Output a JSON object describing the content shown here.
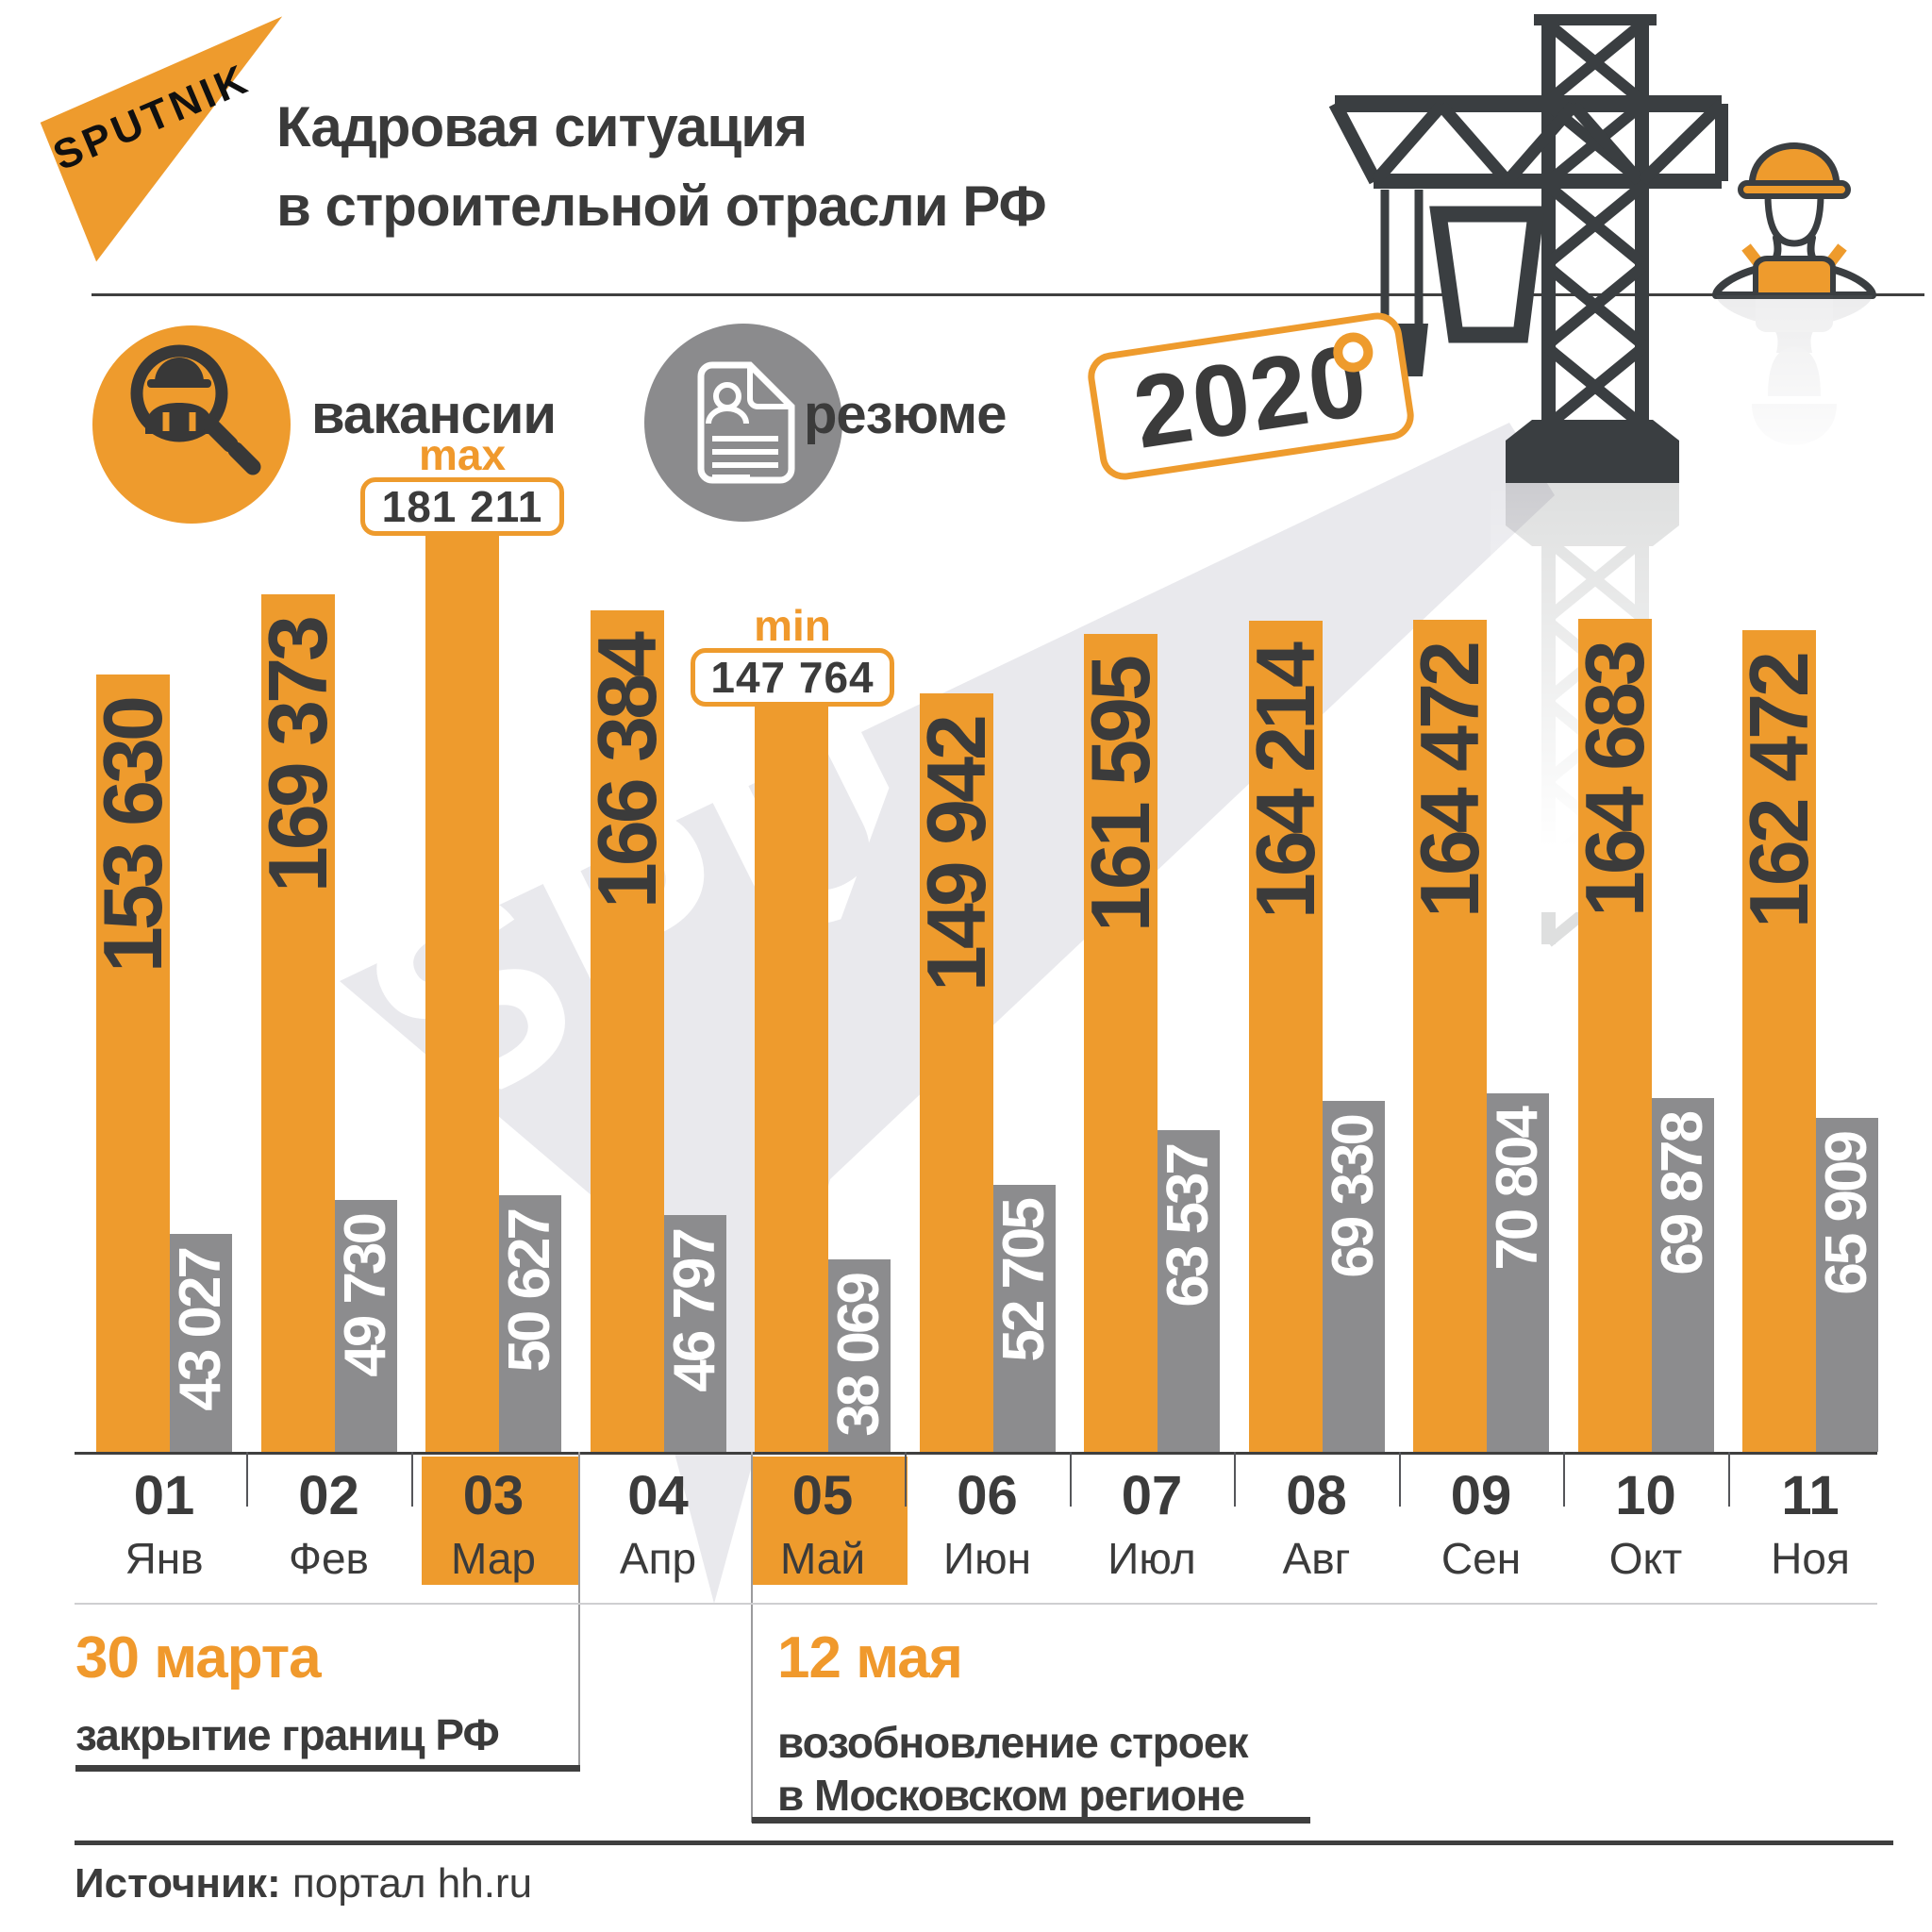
{
  "brand": {
    "logo_text": "SPUTNIK",
    "watermark_text": "SPUTNIK"
  },
  "header": {
    "title_line1": "Кадровая ситуация",
    "title_line2": "в строительной отрасли РФ"
  },
  "legend": {
    "vacancies_label": "вакансии",
    "resumes_label": "резюме",
    "vacancies_icon": "magnifier-worker-icon",
    "resumes_icon": "resume-document-icon"
  },
  "year_tag": {
    "text": "2020"
  },
  "annotations": {
    "max_label": "max",
    "max_value": "181 211",
    "min_label": "min",
    "min_value": "147 764",
    "event1_date": "30 марта",
    "event1_text": "закрытие границ РФ",
    "event2_date": "12 мая",
    "event2_text_line1": "возобновление строек",
    "event2_text_line2": "в Московском регионе"
  },
  "source": {
    "label": "Источник:",
    "text": " портал hh.ru"
  },
  "colors": {
    "orange": "#EE9B2D",
    "gray": "#8C8C8E",
    "dark": "#3B3B3B",
    "crane_dark": "#3A3E41",
    "watermark": "#E9E9ED",
    "white": "#FFFFFF"
  },
  "chart_data": {
    "type": "bar",
    "title": "Кадровая ситуация в строительной отрасли РФ, 2020",
    "categories": [
      {
        "num": "01",
        "name": "Янв"
      },
      {
        "num": "02",
        "name": "Фев"
      },
      {
        "num": "03",
        "name": "Мар"
      },
      {
        "num": "04",
        "name": "Апр"
      },
      {
        "num": "05",
        "name": "Май"
      },
      {
        "num": "06",
        "name": "Июн"
      },
      {
        "num": "07",
        "name": "Июл"
      },
      {
        "num": "08",
        "name": "Авг"
      },
      {
        "num": "09",
        "name": "Сен"
      },
      {
        "num": "10",
        "name": "Окт"
      },
      {
        "num": "11",
        "name": "Ноя"
      }
    ],
    "series": [
      {
        "name": "вакансии",
        "color": "#EE9B2D",
        "values": [
          153630,
          169373,
          181211,
          166384,
          147764,
          149942,
          161595,
          164214,
          164472,
          164683,
          162472
        ],
        "value_labels": [
          "153 630",
          "169 373",
          "181 211",
          "166 384",
          "147 764",
          "149 942",
          "161 595",
          "164 214",
          "164 472",
          "164 683",
          "162 472"
        ]
      },
      {
        "name": "резюме",
        "color": "#8C8C8E",
        "values": [
          43027,
          49730,
          50627,
          46797,
          38069,
          52705,
          63537,
          69330,
          70804,
          69878,
          65909
        ],
        "value_labels": [
          "43 027",
          "49 730",
          "50 627",
          "46 797",
          "38 069",
          "52 705",
          "63 537",
          "69 330",
          "70 804",
          "69 878",
          "65 909"
        ]
      }
    ],
    "max_index": 2,
    "min_index": 4,
    "highlighted_months": [
      2,
      4
    ],
    "ylim": [
      0,
      181211
    ],
    "grid": false,
    "legend_position": "top"
  }
}
